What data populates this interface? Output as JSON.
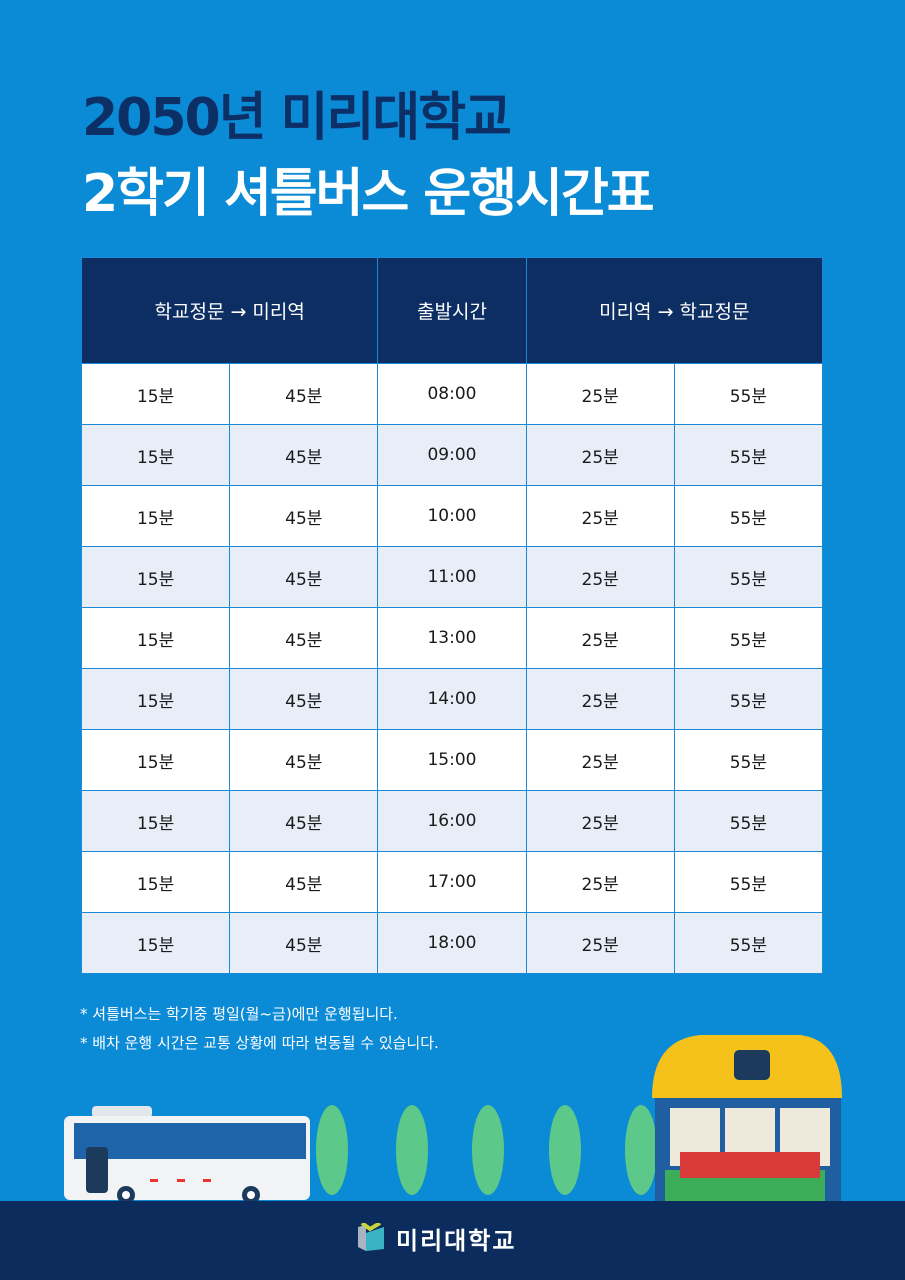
{
  "title": {
    "line1": "2050년 미리대학교",
    "line2": "2학기 셔틀버스 운행시간표"
  },
  "table": {
    "headers": [
      "학교정문 → 미리역",
      "출발시간",
      "미리역 → 학교정문"
    ],
    "rows": [
      [
        "15분",
        "45분",
        "08:00",
        "25분",
        "55분"
      ],
      [
        "15분",
        "45분",
        "09:00",
        "25분",
        "55분"
      ],
      [
        "15분",
        "45분",
        "10:00",
        "25분",
        "55분"
      ],
      [
        "15분",
        "45분",
        "11:00",
        "25분",
        "55분"
      ],
      [
        "15분",
        "45분",
        "13:00",
        "25분",
        "55분"
      ],
      [
        "15분",
        "45분",
        "14:00",
        "25분",
        "55분"
      ],
      [
        "15분",
        "45분",
        "15:00",
        "25분",
        "55분"
      ],
      [
        "15분",
        "45분",
        "16:00",
        "25분",
        "55분"
      ],
      [
        "15분",
        "45분",
        "17:00",
        "25분",
        "55분"
      ],
      [
        "15분",
        "45분",
        "18:00",
        "25분",
        "55분"
      ]
    ]
  },
  "notes": [
    "* 셔틀버스는 학기중 평일(월~금)에만 운행됩니다.",
    "* 배차 운행 시간은 교통 상황에 따라 변동될 수 있습니다."
  ],
  "footer": {
    "logo_text": "미리대학교"
  },
  "colors": {
    "background": "#0b8ad6",
    "navy": "#0c2e62",
    "row_alt": "#e7eef8",
    "tree": "#5cc98a",
    "shelter_roof": "#f5c21b",
    "bench": "#d93a3a"
  },
  "illustration": {
    "icons": [
      "bus-icon",
      "tree-icon",
      "bus-stop-icon",
      "bench-icon"
    ]
  }
}
